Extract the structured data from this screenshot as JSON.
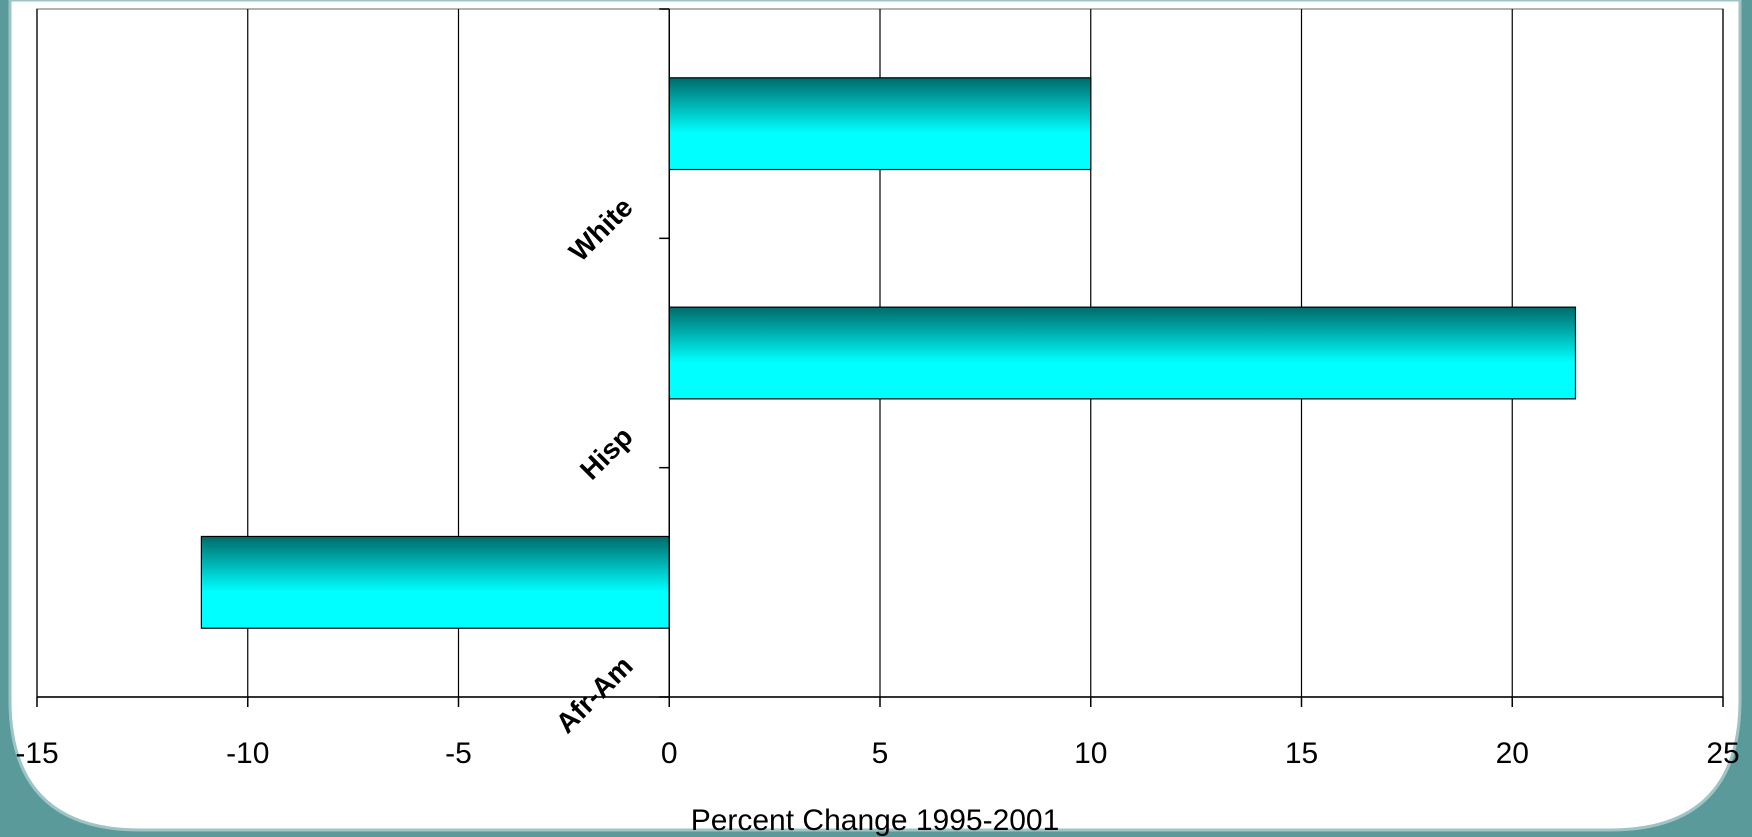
{
  "chart_data": {
    "type": "barh",
    "categories": [
      "Afr-Am",
      "Hisp",
      "White"
    ],
    "values": [
      -11.1,
      21.5,
      10
    ],
    "color": "#00ffff",
    "xlabel": "Percent Change 1995-2001",
    "xlim": [
      -15,
      25
    ],
    "xticks": [
      -15,
      -10,
      -5,
      0,
      5,
      10,
      15,
      20,
      25
    ],
    "grid": true
  }
}
